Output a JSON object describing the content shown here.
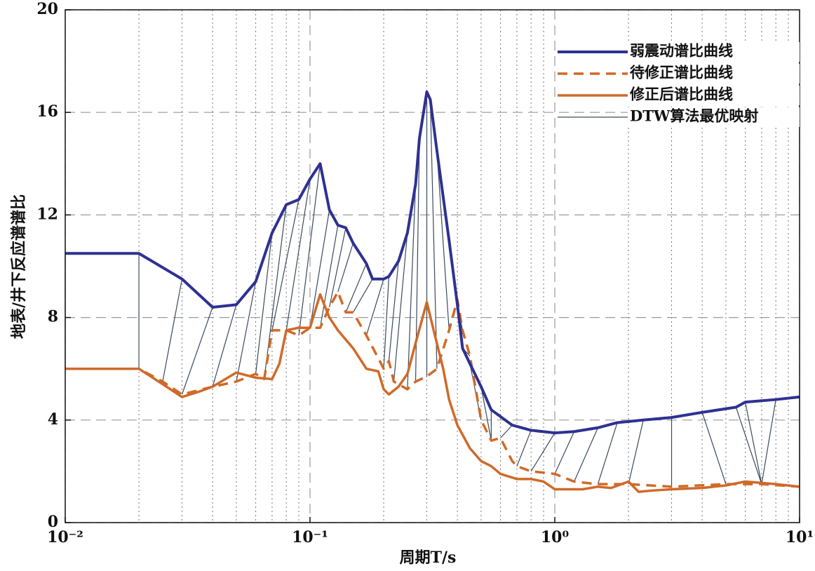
{
  "chart_data": {
    "type": "line",
    "xlabel": "周期T/s",
    "ylabel": "地表/井下反应谱谱比",
    "xscale": "log",
    "xlim": [
      0.01,
      10
    ],
    "xticks": [
      {
        "value": 0.01,
        "label": "10⁻²"
      },
      {
        "value": 0.1,
        "label": "10⁻¹"
      },
      {
        "value": 1,
        "label": "10⁰"
      },
      {
        "value": 10,
        "label": "10¹"
      }
    ],
    "ylim": [
      0,
      20
    ],
    "yticks": [
      0,
      4,
      8,
      12,
      16,
      20
    ],
    "grid": true,
    "legend": "upper right",
    "series": [
      {
        "name": "弱震动谱比曲线",
        "color": "#2e3192",
        "dash": false,
        "x": [
          0.01,
          0.02,
          0.03,
          0.04,
          0.05,
          0.06,
          0.07,
          0.08,
          0.09,
          0.1,
          0.11,
          0.12,
          0.13,
          0.14,
          0.15,
          0.17,
          0.18,
          0.2,
          0.21,
          0.23,
          0.25,
          0.27,
          0.28,
          0.3,
          0.31,
          0.33,
          0.37,
          0.4,
          0.42,
          0.45,
          0.5,
          0.55,
          0.67,
          0.8,
          1.0,
          1.2,
          1.5,
          1.8,
          2.3,
          3.0,
          4.0,
          5.5,
          6.0,
          8.0,
          10
        ],
        "values": [
          10.5,
          10.5,
          9.5,
          8.4,
          8.5,
          9.4,
          11.3,
          12.4,
          12.6,
          13.4,
          14.0,
          12.2,
          11.6,
          11.5,
          10.9,
          10.1,
          9.5,
          9.5,
          9.6,
          10.2,
          11.3,
          13.2,
          15.0,
          16.8,
          16.5,
          14.5,
          11.0,
          8.5,
          6.8,
          6.2,
          5.3,
          4.4,
          3.8,
          3.6,
          3.5,
          3.55,
          3.7,
          3.9,
          4.0,
          4.1,
          4.3,
          4.5,
          4.7,
          4.8,
          4.9
        ]
      },
      {
        "name": "待修正谱比曲线",
        "color": "#cf6a28",
        "dash": true,
        "x": [
          0.01,
          0.02,
          0.025,
          0.03,
          0.04,
          0.05,
          0.06,
          0.065,
          0.07,
          0.08,
          0.09,
          0.1,
          0.11,
          0.12,
          0.13,
          0.14,
          0.15,
          0.17,
          0.2,
          0.21,
          0.22,
          0.25,
          0.27,
          0.3,
          0.33,
          0.37,
          0.4,
          0.42,
          0.45,
          0.5,
          0.55,
          0.6,
          0.67,
          0.7,
          0.8,
          1.0,
          1.2,
          1.5,
          2.0,
          3.0,
          5.0,
          7.0,
          10
        ],
        "values": [
          6.0,
          6.0,
          5.5,
          5.0,
          5.3,
          5.5,
          5.8,
          5.6,
          7.5,
          7.5,
          7.3,
          7.6,
          7.6,
          8.4,
          9.0,
          8.2,
          8.2,
          7.3,
          6.0,
          6.3,
          5.5,
          5.2,
          5.5,
          5.7,
          6.0,
          7.5,
          8.7,
          7.5,
          6.5,
          4.0,
          3.2,
          3.3,
          2.4,
          2.2,
          2.0,
          1.9,
          1.6,
          1.5,
          1.5,
          1.4,
          1.5,
          1.5,
          1.4
        ]
      },
      {
        "name": "修正后谱比曲线",
        "color": "#cf6a28",
        "dash": false,
        "x": [
          0.01,
          0.02,
          0.025,
          0.03,
          0.035,
          0.04,
          0.05,
          0.06,
          0.07,
          0.075,
          0.08,
          0.09,
          0.1,
          0.11,
          0.12,
          0.13,
          0.15,
          0.17,
          0.19,
          0.2,
          0.21,
          0.23,
          0.25,
          0.27,
          0.3,
          0.32,
          0.35,
          0.37,
          0.4,
          0.45,
          0.5,
          0.55,
          0.6,
          0.7,
          0.8,
          0.9,
          1.0,
          1.3,
          1.5,
          1.7,
          2.0,
          2.2,
          2.5,
          3.0,
          4.0,
          5.0,
          6.0,
          8.0,
          10
        ],
        "values": [
          6.0,
          6.0,
          5.4,
          4.9,
          5.1,
          5.3,
          5.85,
          5.65,
          5.6,
          6.2,
          7.5,
          7.6,
          7.6,
          8.9,
          8.0,
          7.5,
          6.8,
          6.0,
          5.9,
          5.2,
          5.0,
          5.3,
          5.8,
          7.0,
          8.6,
          7.5,
          6.0,
          4.8,
          3.8,
          2.9,
          2.4,
          2.2,
          1.9,
          1.7,
          1.7,
          1.6,
          1.3,
          1.3,
          1.4,
          1.35,
          1.6,
          1.2,
          1.25,
          1.3,
          1.35,
          1.45,
          1.6,
          1.5,
          1.4
        ]
      },
      {
        "name": "DTW算法最优映射",
        "color": "#3b4a5c",
        "pairs": [
          [
            0,
            0
          ],
          [
            1,
            1
          ],
          [
            2,
            2
          ],
          [
            3,
            3
          ],
          [
            4,
            4
          ],
          [
            5,
            5
          ],
          [
            6,
            6
          ],
          [
            7,
            7
          ],
          [
            8,
            8
          ],
          [
            9,
            9
          ],
          [
            10,
            10
          ],
          [
            11,
            11
          ],
          [
            12,
            12
          ],
          [
            13,
            13
          ],
          [
            14,
            14
          ],
          [
            15,
            15
          ],
          [
            16,
            16
          ],
          [
            17,
            17
          ],
          [
            18,
            18
          ],
          [
            19,
            19
          ],
          [
            20,
            20
          ],
          [
            21,
            21
          ],
          [
            22,
            22
          ],
          [
            23,
            23
          ],
          [
            24,
            24
          ],
          [
            25,
            25
          ],
          [
            26,
            26
          ],
          [
            27,
            27
          ],
          [
            28,
            28
          ],
          [
            29,
            29
          ],
          [
            30,
            30
          ],
          [
            31,
            30
          ],
          [
            32,
            31
          ],
          [
            33,
            33
          ],
          [
            34,
            34
          ],
          [
            35,
            35
          ],
          [
            36,
            36
          ],
          [
            37,
            37
          ],
          [
            38,
            38
          ],
          [
            39,
            39
          ],
          [
            40,
            40
          ],
          [
            41,
            41
          ],
          [
            42,
            41
          ],
          [
            43,
            41
          ],
          [
            44,
            42
          ]
        ]
      }
    ]
  }
}
